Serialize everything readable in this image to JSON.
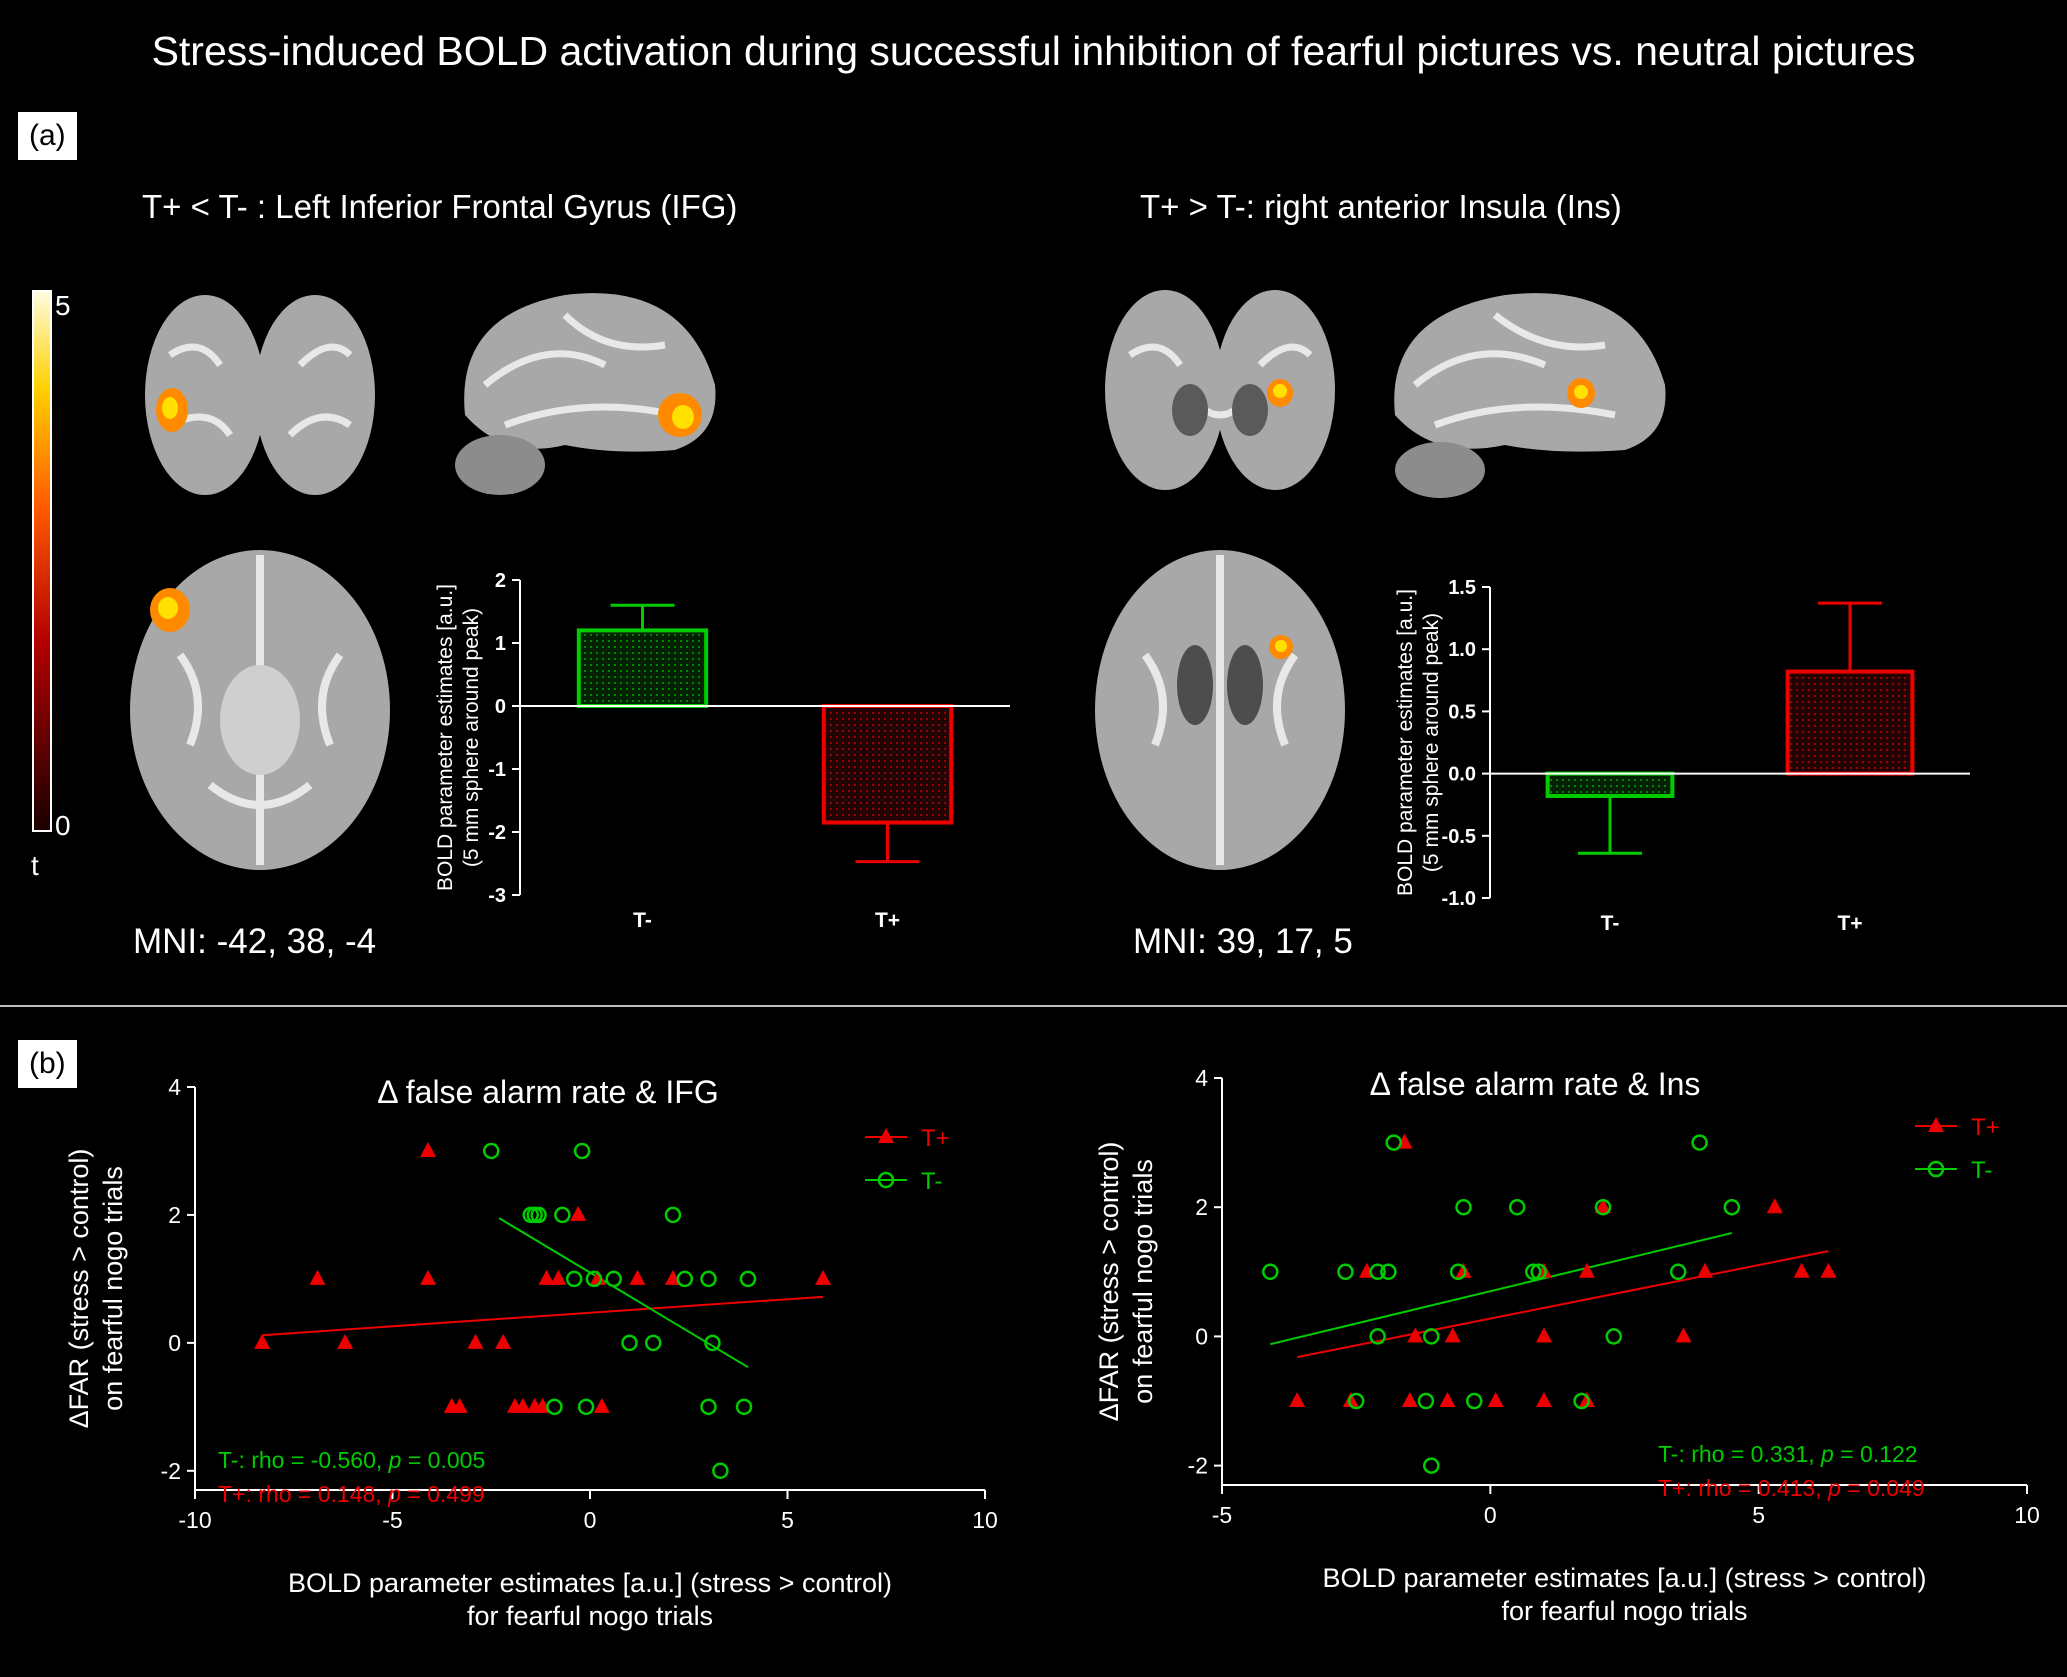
{
  "title": "Stress-induced BOLD activation during successful inhibition of fearful pictures vs. neutral pictures",
  "panel_a": {
    "label": "(a)",
    "left_title": "T+ < T- : Left Inferior Frontal Gyrus (IFG)",
    "right_title": "T+ > T-: right anterior Insula (Ins)",
    "left_mni": "MNI: -42, 38, -4",
    "right_mni": "MNI: 39, 17, 5",
    "colorbar": {
      "max_label": "5",
      "min_label": "0",
      "var_label": "t"
    }
  },
  "panel_b": {
    "label": "(b)"
  },
  "colors": {
    "T_minus": "#00cc00",
    "T_plus": "#ee0000",
    "axis": "#ffffff"
  },
  "chart_data": [
    {
      "id": "bar_ifg",
      "type": "bar",
      "ylabel": "BOLD parameter estimates [a.u.]",
      "ylabel2": "(5 mm sphere around peak)",
      "categories": [
        "T-",
        "T+"
      ],
      "values": [
        1.2,
        -1.85
      ],
      "errors": [
        0.4,
        0.62
      ],
      "ylim": [
        -3,
        2
      ],
      "yticks": [
        2,
        1,
        0,
        -1,
        -2,
        -3
      ],
      "ytick_labels": [
        "2",
        "1",
        "0",
        "-1",
        "-2",
        "-3"
      ]
    },
    {
      "id": "bar_ins",
      "type": "bar",
      "ylabel": "BOLD parameter estimates [a.u.]",
      "ylabel2": "(5 mm sphere around peak)",
      "categories": [
        "T-",
        "T+"
      ],
      "values": [
        -0.18,
        0.82
      ],
      "errors": [
        0.46,
        0.55
      ],
      "ylim": [
        -1.0,
        1.5
      ],
      "yticks": [
        1.5,
        1.0,
        0.5,
        0.0,
        -0.5,
        -1.0
      ],
      "ytick_labels": [
        "1.5",
        "1.0",
        "0.5",
        "0.0",
        "-0.5",
        "-1.0"
      ]
    },
    {
      "id": "scatter_ifg",
      "type": "scatter",
      "title": "Δ false alarm rate & IFG",
      "xlabel": "BOLD parameter estimates [a.u.] (stress > control)",
      "xlabel2": "for fearful nogo trials",
      "ylabel": "ΔFAR (stress > control)",
      "ylabel2": "on fearful nogo trials",
      "xlim": [
        -10,
        10
      ],
      "ylim": [
        -2.3,
        4
      ],
      "xticks": [
        -10,
        -5,
        0,
        5,
        10
      ],
      "xtick_labels": [
        "-10",
        "-5",
        "0",
        "5",
        "10"
      ],
      "yticks": [
        4,
        2,
        0,
        -2
      ],
      "ytick_labels": [
        "4",
        "2",
        "0",
        "-2"
      ],
      "legend": [
        "T+",
        "T-"
      ],
      "stats": {
        "tminus_prefix": "T-: rho = -0.560, ",
        "tminus_p": "p",
        "tminus_suffix": " = 0.005",
        "tplus_prefix": "T+:  rho = 0.148, ",
        "tplus_p": "p",
        "tplus_suffix": " = 0.499"
      },
      "series": [
        {
          "name": "T+",
          "marker": "triangle",
          "x": [
            -4.1,
            -0.3,
            -6.9,
            -4.1,
            -1.1,
            -0.8,
            0.2,
            1.2,
            2.1,
            5.9,
            -8.3,
            -6.2,
            -2.9,
            -2.2,
            -3.5,
            -3.3,
            -1.9,
            -1.7,
            -1.4,
            -1.2,
            0.3
          ],
          "y": [
            3,
            2,
            1,
            1,
            1,
            1,
            1,
            1,
            1,
            1,
            0,
            0,
            0,
            0,
            -1,
            -1,
            -1,
            -1,
            -1,
            -1,
            -1
          ]
        },
        {
          "name": "T-",
          "marker": "circle",
          "x": [
            -2.5,
            -0.2,
            -1.5,
            -1.3,
            -0.7,
            -1.4,
            2.1,
            -0.4,
            0.1,
            0.6,
            2.4,
            3.0,
            4.0,
            1.0,
            1.6,
            3.1,
            -0.9,
            -0.1,
            3.0,
            3.9,
            3.3
          ],
          "y": [
            3,
            3,
            2,
            2,
            2,
            2,
            2,
            1,
            1,
            1,
            1,
            1,
            1,
            0,
            0,
            0,
            -1,
            -1,
            -1,
            -1,
            -2
          ]
        }
      ],
      "fit_lines": [
        {
          "name": "T+",
          "x": [
            -8.3,
            5.9
          ],
          "y": [
            0.12,
            0.72
          ]
        },
        {
          "name": "T-",
          "x": [
            -2.3,
            4.0
          ],
          "y": [
            1.95,
            -0.38
          ]
        }
      ]
    },
    {
      "id": "scatter_ins",
      "type": "scatter",
      "title": "Δ false alarm rate & Ins",
      "xlabel": "BOLD parameter estimates [a.u.] (stress > control)",
      "xlabel2": "for fearful nogo trials",
      "ylabel": "ΔFAR (stress > control)",
      "ylabel2": "on fearful nogo trials",
      "xlim": [
        -5,
        10
      ],
      "ylim": [
        -2.3,
        4
      ],
      "xticks": [
        -5,
        0,
        5,
        10
      ],
      "xtick_labels": [
        "-5",
        "0",
        "5",
        "10"
      ],
      "yticks": [
        4,
        2,
        0,
        -2
      ],
      "ytick_labels": [
        "4",
        "2",
        "0",
        "-2"
      ],
      "legend": [
        "T+",
        "T-"
      ],
      "stats": {
        "tminus_prefix": "T-: rho = 0.331, ",
        "tminus_p": "p",
        "tminus_suffix": " = 0.122",
        "tplus_prefix": "T+:  rho = 0.413, ",
        "tplus_p": "p",
        "tplus_suffix": " = 0.049"
      },
      "series": [
        {
          "name": "T+",
          "marker": "triangle",
          "x": [
            -1.6,
            2.1,
            5.3,
            -2.3,
            -0.5,
            1.0,
            1.8,
            4.0,
            5.8,
            6.3,
            -1.4,
            -0.7,
            1.0,
            3.6,
            -3.6,
            -2.6,
            -1.5,
            -0.8,
            0.1,
            1.0,
            1.8
          ],
          "y": [
            3,
            2,
            2,
            1,
            1,
            1,
            1,
            1,
            1,
            1,
            0,
            0,
            0,
            0,
            -1,
            -1,
            -1,
            -1,
            -1,
            -1,
            -1
          ]
        },
        {
          "name": "T-",
          "marker": "circle",
          "x": [
            -1.8,
            -0.5,
            0.5,
            2.1,
            3.9,
            4.5,
            -4.1,
            -2.7,
            -2.1,
            -1.9,
            -0.6,
            0.8,
            0.9,
            3.5,
            -2.1,
            -1.1,
            2.3,
            -2.5,
            -1.2,
            -0.3,
            1.7,
            -1.1
          ],
          "y": [
            3,
            2,
            2,
            2,
            3,
            2,
            1,
            1,
            1,
            1,
            1,
            1,
            1,
            1,
            0,
            0,
            0,
            -1,
            -1,
            -1,
            -1,
            -2
          ]
        }
      ],
      "fit_lines": [
        {
          "name": "T+",
          "x": [
            -3.6,
            6.3
          ],
          "y": [
            -0.32,
            1.32
          ]
        },
        {
          "name": "T-",
          "x": [
            -4.1,
            4.5
          ],
          "y": [
            -0.12,
            1.6
          ]
        }
      ]
    }
  ]
}
